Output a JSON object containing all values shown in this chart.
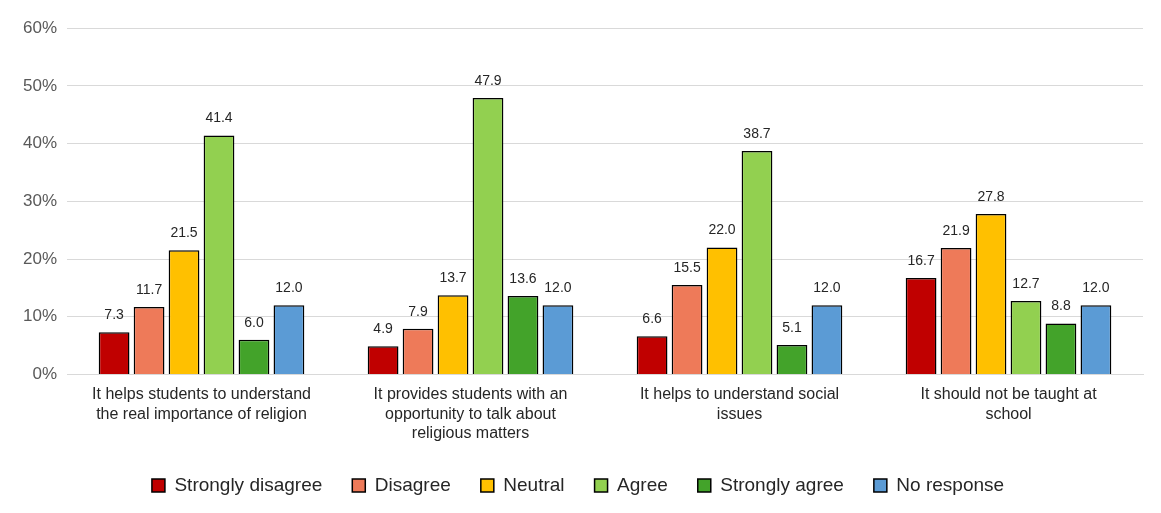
{
  "chart_data": {
    "type": "bar",
    "categories": [
      "It helps students to understand the real importance of religion",
      "It provides students with an opportunity to talk about religious matters",
      "It helps to understand social issues",
      "It should not be taught at school"
    ],
    "series": [
      {
        "name": "Strongly disagree",
        "color": "#c00000",
        "values": [
          7.3,
          4.9,
          6.6,
          16.7
        ],
        "value_labels": [
          "7.3",
          "4.9",
          "6.6",
          "16.7"
        ]
      },
      {
        "name": "Disagree",
        "color": "#ee7a59",
        "values": [
          11.7,
          7.9,
          15.5,
          21.9
        ],
        "value_labels": [
          "11.7",
          "7.9",
          "15.5",
          "21.9"
        ]
      },
      {
        "name": "Neutral",
        "color": "#ffc000",
        "values": [
          21.5,
          13.7,
          22,
          27.8
        ],
        "value_labels": [
          "21.5",
          "13.7",
          "22.0",
          "27.8"
        ]
      },
      {
        "name": "Agree",
        "color": "#92d050",
        "values": [
          41.4,
          47.9,
          38.7,
          12.7
        ],
        "value_labels": [
          "41.4",
          "47.9",
          "38.7",
          "12.7"
        ]
      },
      {
        "name": "Strongly agree",
        "color": "#43a32a",
        "values": [
          6,
          13.6,
          5.1,
          8.8
        ],
        "value_labels": [
          "6.0",
          "13.6",
          "5.1",
          "8.8"
        ]
      },
      {
        "name": "No response",
        "color": "#5b9bd5",
        "values": [
          12,
          12,
          12,
          12
        ],
        "value_labels": [
          "12.0",
          "12.0",
          "12.0",
          "12.0"
        ]
      }
    ],
    "ylim": [
      0,
      60
    ],
    "yticks": [
      {
        "value": 0,
        "label": "0%"
      },
      {
        "value": 10,
        "label": "10%"
      },
      {
        "value": 20,
        "label": "20%"
      },
      {
        "value": 30,
        "label": "30%"
      },
      {
        "value": 40,
        "label": "40%"
      },
      {
        "value": 50,
        "label": "50%"
      },
      {
        "value": 60,
        "label": "60%"
      }
    ],
    "grid": "y",
    "legend": "bottom"
  }
}
